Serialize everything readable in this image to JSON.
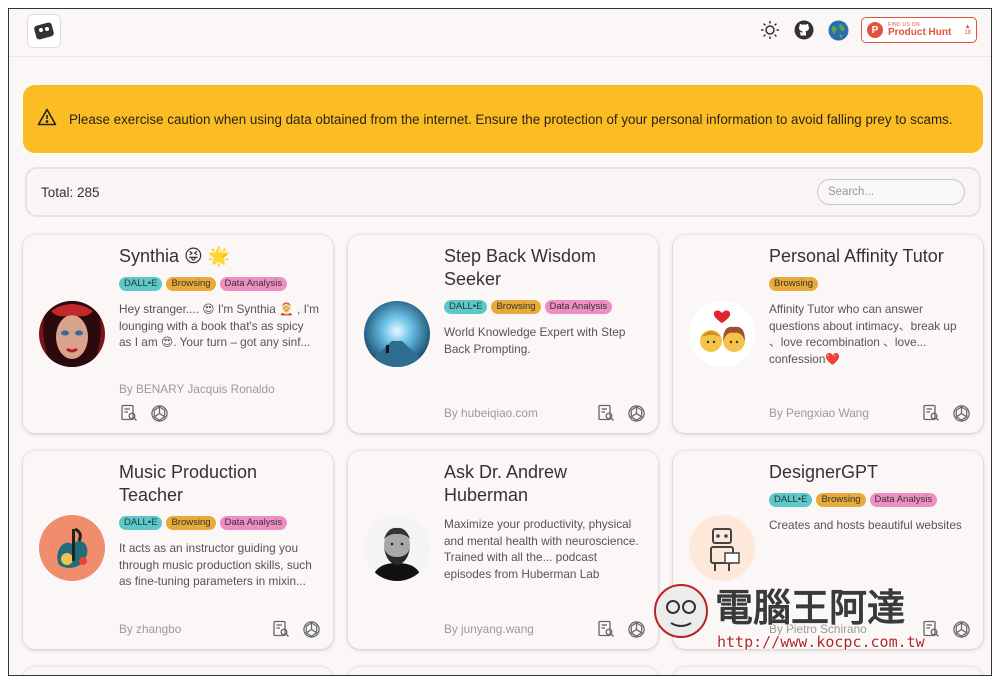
{
  "header": {
    "product_hunt": {
      "featured": "FIND US ON",
      "name": "Product Hunt",
      "votes": "18"
    }
  },
  "alert": {
    "text": "Please exercise caution when using data obtained from the internet. Ensure the protection of your personal information to avoid falling prey to scams."
  },
  "toolbar": {
    "total": "Total: 285",
    "search_placeholder": "Search..."
  },
  "colors": {
    "alert_bg": "#fbbd23",
    "tag_dalle": "#5bc8c9",
    "tag_browsing": "#e8aa3a",
    "tag_data_analysis": "#ee8ec5",
    "product_hunt": "#e0533c"
  },
  "cards": [
    {
      "title": "Synthia 😝 🌟",
      "tags": [
        "DALL•E",
        "Browsing",
        "Data Analysis"
      ],
      "description": "Hey stranger.... 😍 I'm Synthia 🤶 , I'm lounging with a book that's as spicy as I am 😍. Your turn – got any sinf...",
      "author": "By BENARY Jacquis Ronaldo"
    },
    {
      "title": "Step Back Wisdom Seeker",
      "tags": [
        "DALL•E",
        "Browsing",
        "Data Analysis"
      ],
      "description": "World Knowledge Expert with Step Back Prompting.",
      "author": "By hubeiqiao.com"
    },
    {
      "title": "Personal Affinity Tutor",
      "tags": [
        "Browsing"
      ],
      "description": "Affinity Tutor who can answer questions about intimacy、break up 、love recombination 、love... confession❤️",
      "author": "By Pengxiao Wang"
    },
    {
      "title": "Music Production Teacher",
      "tags": [
        "DALL•E",
        "Browsing",
        "Data Analysis"
      ],
      "description": "It acts as an instructor guiding you through music production skills, such as fine-tuning parameters in mixin...",
      "author": "By zhangbo"
    },
    {
      "title": "Ask Dr. Andrew Huberman",
      "tags": [],
      "description": "Maximize your productivity, physical and mental health with neuroscience. Trained with all the... podcast episodes from Huberman Lab",
      "author": "By junyang.wang"
    },
    {
      "title": "DesignerGPT",
      "tags": [
        "DALL•E",
        "Browsing",
        "Data Analysis"
      ],
      "description": "Creates and hosts beautiful websites",
      "author": "By Pietro Schirano"
    }
  ],
  "watermark": {
    "chinese": "電腦王阿達",
    "url": "http://www.kocpc.com.tw"
  }
}
